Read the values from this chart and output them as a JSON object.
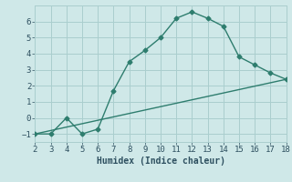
{
  "xlabel": "Humidex (Indice chaleur)",
  "xlim": [
    2,
    18
  ],
  "ylim": [
    -1.5,
    7
  ],
  "xticks": [
    2,
    3,
    4,
    5,
    6,
    7,
    8,
    9,
    10,
    11,
    12,
    13,
    14,
    15,
    16,
    17,
    18
  ],
  "yticks": [
    -1,
    0,
    1,
    2,
    3,
    4,
    5,
    6
  ],
  "line1_x": [
    2,
    3,
    4,
    5,
    6,
    7,
    8,
    9,
    10,
    11,
    12,
    13,
    14,
    15,
    16,
    17,
    18
  ],
  "line1_y": [
    -1,
    -1,
    0,
    -1,
    -0.7,
    1.7,
    3.5,
    4.2,
    5.0,
    6.2,
    6.6,
    6.2,
    5.7,
    3.8,
    3.3,
    2.8,
    2.4
  ],
  "line2_x": [
    2,
    18
  ],
  "line2_y": [
    -1,
    2.4
  ],
  "line_color": "#2e7d6e",
  "bg_color": "#cfe8e8",
  "grid_color": "#aacece",
  "font_color": "#2e5060",
  "marker": "D",
  "marker_size": 2.5,
  "line_width": 1.0,
  "font_size_label": 7,
  "font_size_tick": 6.5
}
